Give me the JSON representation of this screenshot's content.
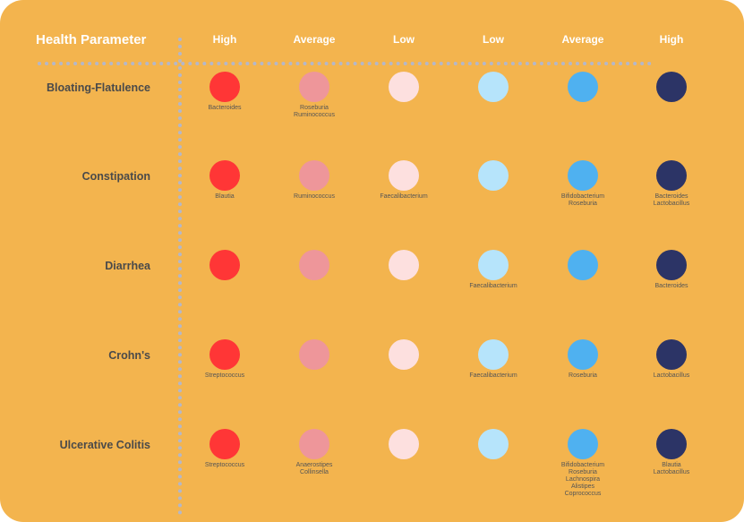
{
  "title": "Health Parameter",
  "columns": [
    {
      "label": "High",
      "color": "#ff3636"
    },
    {
      "label": "Average",
      "color": "#ee969a"
    },
    {
      "label": "Low",
      "color": "#fde0df"
    },
    {
      "label": "Low",
      "color": "#b6e4fb"
    },
    {
      "label": "Average",
      "color": "#4fb1f0"
    },
    {
      "label": "High",
      "color": "#2c3466"
    }
  ],
  "rows": [
    {
      "label": "Bloating-Flatulence",
      "cells": [
        [
          "Bacteroides"
        ],
        [
          "Roseburia",
          "Ruminococcus"
        ],
        [],
        [],
        [],
        []
      ]
    },
    {
      "label": "Constipation",
      "cells": [
        [
          "Blautia"
        ],
        [
          "Ruminococcus"
        ],
        [
          "Faecalibacterium"
        ],
        [],
        [
          "Bifidobacterium",
          "Roseburia"
        ],
        [
          "Bacteroides",
          "Lactobacillus"
        ]
      ]
    },
    {
      "label": "Diarrhea",
      "cells": [
        [],
        [],
        [],
        [
          "Faecalibacterium"
        ],
        [],
        [
          "Bacteroides"
        ]
      ]
    },
    {
      "label": "Crohn's",
      "cells": [
        [
          "Streptococcus"
        ],
        [],
        [],
        [
          "Faecalibacterium"
        ],
        [
          "Roseburia"
        ],
        [
          "Lactobacillus"
        ]
      ]
    },
    {
      "label": "Ulcerative Colitis",
      "cells": [
        [
          "Streptococcus"
        ],
        [
          "Anaerostipes",
          "Collinsella"
        ],
        [],
        [],
        [
          "Bifidobacterium",
          "Roseburia",
          "Lachnospira",
          "Alistipes",
          "Coprococcus"
        ],
        [
          "Blautia",
          "Lactobacillus"
        ]
      ]
    }
  ]
}
